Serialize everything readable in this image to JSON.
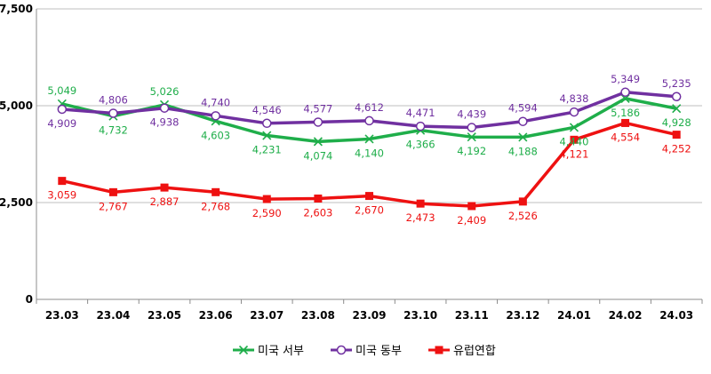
{
  "chart_data": {
    "type": "line",
    "categories": [
      "23.03",
      "23.04",
      "23.05",
      "23.06",
      "23.07",
      "23.08",
      "23.09",
      "23.10",
      "23.11",
      "23.12",
      "24.01",
      "24.02",
      "24.03"
    ],
    "ylim": [
      0,
      7500
    ],
    "yticks": [
      0,
      2500,
      5000,
      7500
    ],
    "ytick_labels": [
      "0",
      "2,500",
      "5,000",
      "7,500"
    ],
    "grid": "horizontal",
    "legend_position": "bottom",
    "series": [
      {
        "name": "미국 서부",
        "color": "#1fae4a",
        "marker": "x",
        "values": [
          5049,
          4732,
          5026,
          4603,
          4231,
          4074,
          4140,
          4366,
          4192,
          4188,
          4440,
          5186,
          4928
        ],
        "labels": [
          "5,049",
          "4,732",
          "5,026",
          "4,603",
          "4,231",
          "4,074",
          "4,140",
          "4,366",
          "4,192",
          "4,188",
          "4,440",
          "5,186",
          "4,928"
        ],
        "label_pos": [
          "above",
          "below",
          "above",
          "below",
          "below",
          "below",
          "below",
          "below",
          "below",
          "below",
          "below",
          "below",
          "below"
        ]
      },
      {
        "name": "미국 동부",
        "color": "#7030a0",
        "marker": "circle-open",
        "values": [
          4909,
          4806,
          4938,
          4740,
          4546,
          4577,
          4612,
          4471,
          4439,
          4594,
          4838,
          5349,
          5235
        ],
        "labels": [
          "4,909",
          "4,806",
          "4,938",
          "4,740",
          "4,546",
          "4,577",
          "4,612",
          "4,471",
          "4,439",
          "4,594",
          "4,838",
          "5,349",
          "5,235"
        ],
        "label_pos": [
          "below",
          "above",
          "below",
          "above",
          "above",
          "above",
          "above",
          "above",
          "above",
          "above",
          "above",
          "above",
          "above"
        ]
      },
      {
        "name": "유럽연합",
        "color": "#ee1111",
        "marker": "square",
        "values": [
          3059,
          2767,
          2887,
          2768,
          2590,
          2603,
          2670,
          2473,
          2409,
          2526,
          4121,
          4554,
          4252
        ],
        "labels": [
          "3,059",
          "2,767",
          "2,887",
          "2,768",
          "2,590",
          "2,603",
          "2,670",
          "2,473",
          "2,409",
          "2,526",
          "4,121",
          "4,554",
          "4,252"
        ],
        "label_pos": [
          "below",
          "below",
          "below",
          "below",
          "below",
          "below",
          "below",
          "below",
          "below",
          "below",
          "below",
          "below",
          "below"
        ]
      }
    ]
  }
}
